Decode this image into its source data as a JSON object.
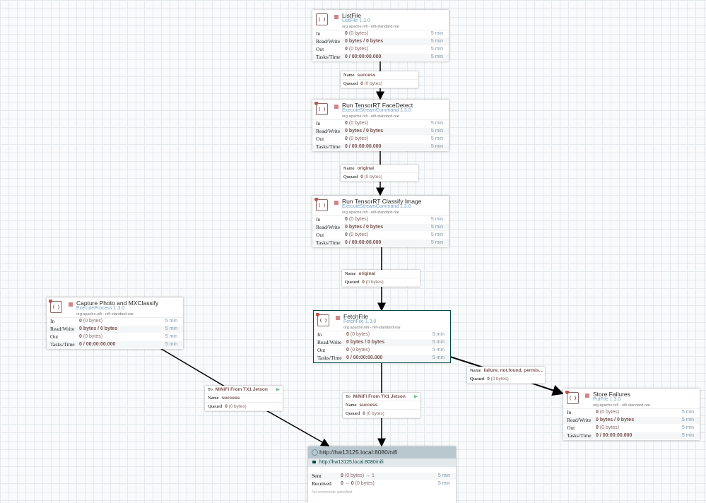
{
  "labels": {
    "in": "In",
    "rw": "Read/Write",
    "out": "Out",
    "tasks": "Tasks/Time",
    "name": "Name",
    "queued": "Queued",
    "to": "To",
    "sent": "Sent",
    "received": "Received"
  },
  "processors": [
    {
      "id": "listfile",
      "name": "ListFile",
      "type": "ListFile 1.3.0",
      "bundle": "org.apache.nifi - nifi-standard-nar",
      "secured": false,
      "in": "0",
      "in_size": "(0 bytes)",
      "rw": "0 bytes / 0 bytes",
      "out": "0",
      "out_size": "(0 bytes)",
      "tasks": "0 / 00:00:00.000",
      "window": "5 min"
    },
    {
      "id": "facedetect",
      "name": "Run TensorRT FaceDetect",
      "type": "ExecuteStreamCommand 1.3.0",
      "bundle": "org.apache.nifi - nifi-standard-nar",
      "secured": true,
      "in": "0",
      "in_size": "(0 bytes)",
      "rw": "0 bytes / 0 bytes",
      "out": "0",
      "out_size": "(0 bytes)",
      "tasks": "0 / 00:00:00.000",
      "window": "5 min"
    },
    {
      "id": "classify",
      "name": "Run TensorRT Classify Image",
      "type": "ExecuteStreamCommand 1.3.0",
      "bundle": "org.apache.nifi - nifi-standard-nar",
      "secured": true,
      "in": "0",
      "in_size": "(0 bytes)",
      "rw": "0 bytes / 0 bytes",
      "out": "0",
      "out_size": "(0 bytes)",
      "tasks": "0 / 00:00:00.000",
      "window": "5 min"
    },
    {
      "id": "fetchfile",
      "name": "FetchFile",
      "type": "FetchFile 1.3.0",
      "bundle": "org.apache.nifi - nifi-standard-nar",
      "secured": true,
      "selected": true,
      "in": "0",
      "in_size": "(0 bytes)",
      "rw": "0 bytes / 0 bytes",
      "out": "0",
      "out_size": "(0 bytes)",
      "tasks": "0 / 00:00:00.000",
      "window": "5 min"
    },
    {
      "id": "capture",
      "name": "Capture Photo and MXClassify",
      "type": "ExecuteProcess 1.3.0",
      "bundle": "org.apache.nifi - nifi-standard-nar",
      "secured": true,
      "in": "0",
      "in_size": "(0 bytes)",
      "rw": "0 bytes / 0 bytes",
      "out": "0",
      "out_size": "(0 bytes)",
      "tasks": "0 / 00:00:00.000",
      "window": "5 min"
    },
    {
      "id": "storefailures",
      "name": "Store Failures",
      "type": "PutFile 1.3.0",
      "bundle": "org.apache.nifi - nifi-standard-nar",
      "secured": true,
      "in": "0",
      "in_size": "(0 bytes)",
      "rw": "0 bytes / 0 bytes",
      "out": "0",
      "out_size": "(0 bytes)",
      "tasks": "0 / 00:00:00.000",
      "window": "5 min"
    }
  ],
  "connections": [
    {
      "name": "success",
      "queued": "0",
      "queued_size": "(0 bytes)"
    },
    {
      "name": "original",
      "queued": "0",
      "queued_size": "(0 bytes)"
    },
    {
      "name": "original",
      "queued": "0",
      "queued_size": "(0 bytes)"
    },
    {
      "name": "failure, not.found, permis...",
      "queued": "0",
      "queued_size": "(0 bytes)"
    },
    {
      "to": "MiNiFi From TX1 Jetson",
      "name": "success",
      "queued": "0",
      "queued_size": "(0 bytes)"
    },
    {
      "to": "MiNiFi From TX1 Jetson",
      "name": "success",
      "queued": "0",
      "queued_size": "(0 bytes)"
    }
  ],
  "remote_group": {
    "title": "http://hw13125.local:8080/nifi",
    "uri": "http://hw13125.local:8080/nifi",
    "sent": "0",
    "sent_rest": "(0 bytes) → 1",
    "received": "0 → 0",
    "received_rest": "(0 bytes)",
    "window": "5 min",
    "comments": "No comments specified"
  },
  "colors": {
    "selected_border": "#004849",
    "rpg_header": "#b8c7ce",
    "stopped": "#d18686",
    "transmit": "#6cc28a"
  }
}
